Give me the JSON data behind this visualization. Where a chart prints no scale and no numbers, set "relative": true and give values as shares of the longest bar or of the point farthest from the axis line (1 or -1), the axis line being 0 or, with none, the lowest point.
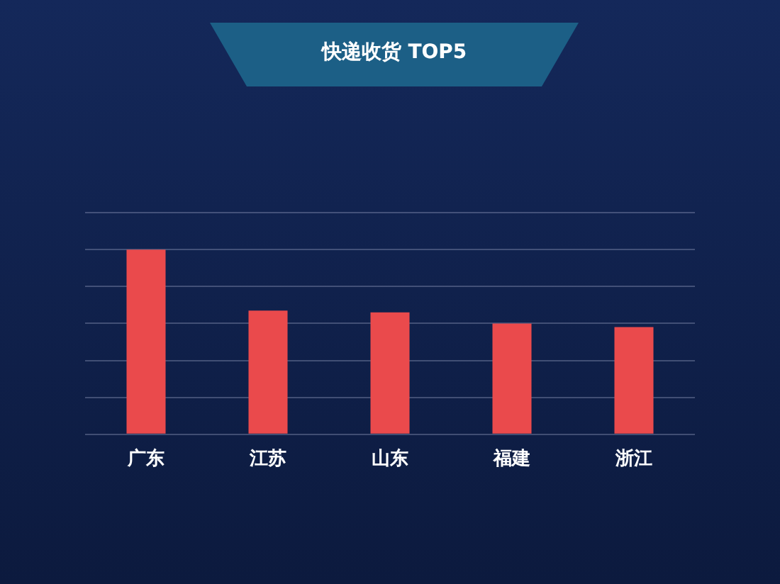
{
  "chart_data": {
    "type": "bar",
    "title": "快递收货 TOP5",
    "relative": true,
    "categories": [
      "广东",
      "江苏",
      "山东",
      "福建",
      "浙江"
    ],
    "values": [
      1,
      0.67,
      0.66,
      0.6,
      0.58
    ],
    "color": "#ea4a4c",
    "grid": "y"
  }
}
